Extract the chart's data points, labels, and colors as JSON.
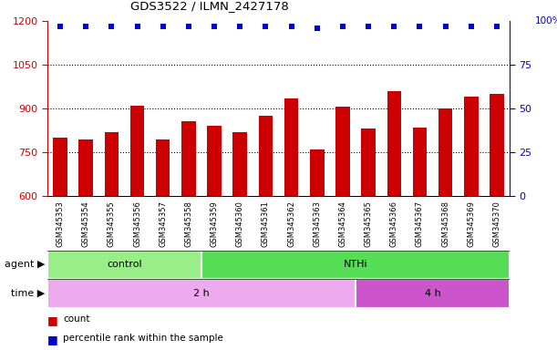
{
  "title": "GDS3522 / ILMN_2427178",
  "samples": [
    "GSM345353",
    "GSM345354",
    "GSM345355",
    "GSM345356",
    "GSM345357",
    "GSM345358",
    "GSM345359",
    "GSM345360",
    "GSM345361",
    "GSM345362",
    "GSM345363",
    "GSM345364",
    "GSM345365",
    "GSM345366",
    "GSM345367",
    "GSM345368",
    "GSM345369",
    "GSM345370"
  ],
  "counts": [
    800,
    795,
    820,
    910,
    795,
    855,
    840,
    820,
    875,
    935,
    760,
    905,
    830,
    960,
    835,
    900,
    940,
    950
  ],
  "percentile_ranks": [
    97,
    97,
    97,
    97,
    97,
    97,
    97,
    97,
    97,
    97,
    96,
    97,
    97,
    97,
    97,
    97,
    97,
    97
  ],
  "ylim_left": [
    600,
    1200
  ],
  "ylim_right": [
    0,
    100
  ],
  "yticks_left": [
    600,
    750,
    900,
    1050,
    1200
  ],
  "yticks_right_vals": [
    0,
    25,
    50,
    75
  ],
  "yticks_right_labels": [
    "0",
    "25",
    "50",
    "75"
  ],
  "bar_color": "#cc0000",
  "dot_color": "#0000cc",
  "agent_groups": [
    {
      "label": "control",
      "start": 0,
      "end": 6,
      "color": "#99ee88"
    },
    {
      "label": "NTHi",
      "start": 6,
      "end": 18,
      "color": "#55dd55"
    }
  ],
  "time_groups": [
    {
      "label": "2 h",
      "start": 0,
      "end": 12,
      "color": "#eeaaee"
    },
    {
      "label": "4 h",
      "start": 12,
      "end": 18,
      "color": "#cc55cc"
    }
  ],
  "agent_label": "agent",
  "time_label": "time",
  "legend_count_label": "count",
  "legend_pct_label": "percentile rank within the sample",
  "xtick_bg_color": "#cccccc",
  "xtick_divider_color": "#ffffff",
  "right_axis_color": "#0000cc",
  "left_axis_color": "#cc0000",
  "grid_color": "#000000"
}
